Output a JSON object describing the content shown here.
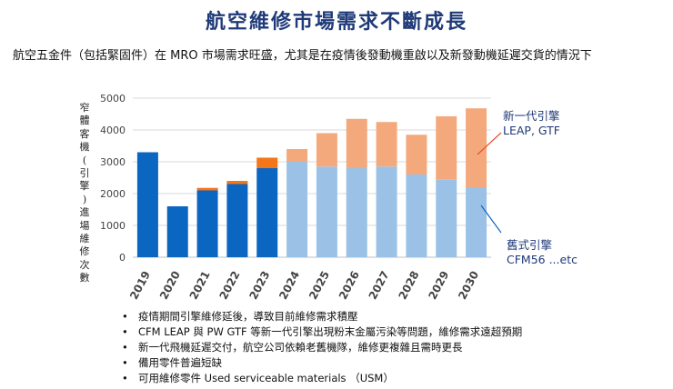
{
  "page": {
    "title": "航空維修市場需求不斷成長",
    "subtitle": "航空五金件（包括緊固件）在 MRO 市場需求旺盛，尤其是在疫情後發動機重啟以及新發動機延遲交貨的情況下"
  },
  "chart_data": {
    "type": "bar",
    "stacked": true,
    "ylabel": "窄體客機(引擎)進場維修次數",
    "ylim": [
      0,
      5000
    ],
    "yticks": [
      0,
      1000,
      2000,
      3000,
      4000,
      5000
    ],
    "categories": [
      "2019",
      "2020",
      "2021",
      "2022",
      "2023",
      "2024",
      "2025",
      "2026",
      "2027",
      "2028",
      "2029",
      "2030"
    ],
    "series": [
      {
        "name": "舊式引擎 CFM56 ...etc",
        "values": [
          3300,
          1600,
          2100,
          2300,
          2800,
          3000,
          2850,
          2800,
          2850,
          2600,
          2450,
          2200
        ],
        "colors": [
          "#0b66c2",
          "#0b66c2",
          "#0b66c2",
          "#0b66c2",
          "#0b66c2",
          "#9bc2e6",
          "#9bc2e6",
          "#9bc2e6",
          "#9bc2e6",
          "#9bc2e6",
          "#9bc2e6",
          "#9bc2e6"
        ]
      },
      {
        "name": "新一代引擎 LEAP, GTF",
        "values": [
          0,
          0,
          80,
          100,
          330,
          400,
          1050,
          1550,
          1400,
          1250,
          1980,
          2480
        ],
        "colors": [
          "#f4761b",
          "#f4761b",
          "#f4761b",
          "#f4761b",
          "#f4761b",
          "#f4a97d",
          "#f4a97d",
          "#f4a97d",
          "#f4a97d",
          "#f4a97d",
          "#f4a97d",
          "#f4a97d"
        ]
      }
    ],
    "legend": {
      "new_line1": "新一代引擎",
      "new_line2": "LEAP,  GTF",
      "old_line1": "舊式引擎",
      "old_line2": "CFM56 ...etc",
      "new_color": "#1f3a78",
      "old_color": "#1f3a78",
      "pointer_color": "#e8542b",
      "pointer_color_old": "#0b66c2"
    }
  },
  "bullets": [
    "疫情期間引擎維修延後，導致目前維修需求積壓",
    "CFM LEAP 與 PW GTF 等新一代引擎出現粉末金屬污染等問題，維修需求遠超預期",
    "新一代飛機延遲交付，航空公司依賴老舊機隊，維修更複雜且需時更長",
    "備用零件普遍短缺",
    "可用維修零件 Used serviceable materials （USM）"
  ]
}
